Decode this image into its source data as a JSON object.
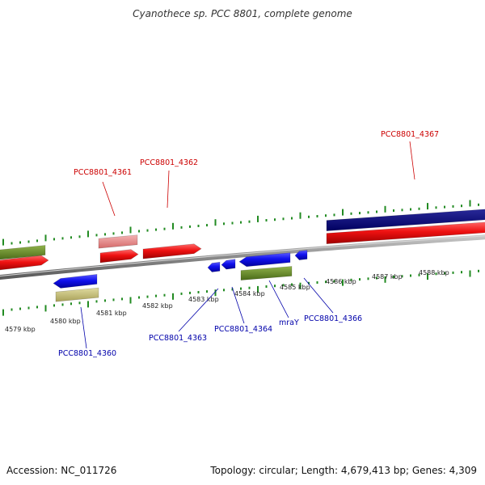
{
  "title": "Cyanothece sp. PCC 8801, complete genome",
  "footer": {
    "accession": "Accession: NC_011726",
    "topology": "Topology: circular; Length: 4,679,413 bp; Genes: 4,309"
  },
  "colors": {
    "forward_gene": "#ee1111",
    "forward_gene_light": "#e98585",
    "reverse_gene": "#1111ee",
    "navy_gene": "#000080",
    "olive_gene": "#6b8e23",
    "khaki_gene": "#c8c27a",
    "tick": "#228b22",
    "backbone": "#888888",
    "forward_label": "#cc0000",
    "reverse_label": "#0000aa"
  },
  "kbp_ticks": [
    "4579 kbp",
    "4580 kbp",
    "4581 kbp",
    "4582 kbp",
    "4583 kbp",
    "4584 kbp",
    "4585 kbp",
    "4586 kbp",
    "4587 kbp",
    "4588 kbp"
  ],
  "gene_labels": {
    "g4361": "PCC8801_4361",
    "g4362": "PCC8801_4362",
    "g4367": "PCC8801_4367",
    "g4360": "PCC8801_4360",
    "g4363": "PCC8801_4363",
    "g4364": "PCC8801_4364",
    "mray": "mraY",
    "g4366": "PCC8801_4366"
  }
}
